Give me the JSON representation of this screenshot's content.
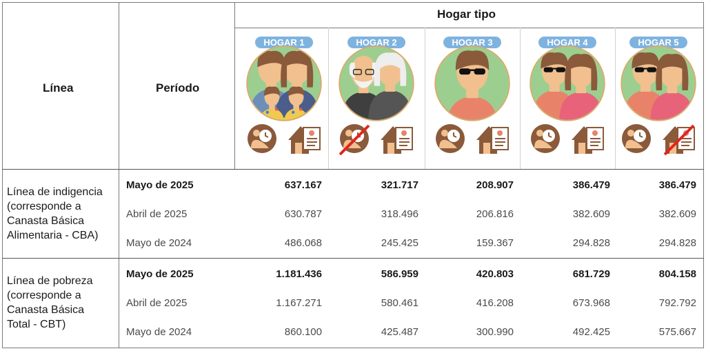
{
  "header": {
    "linea": "Línea",
    "periodo": "Período",
    "hogar_tipo": "Hogar tipo"
  },
  "hogares": [
    {
      "label": "HOGAR 1",
      "members": "family-4",
      "icons": [
        "infant-care-icon",
        "housing-rent-icon"
      ],
      "crossed": ""
    },
    {
      "label": "HOGAR 2",
      "members": "elderly-couple",
      "icons": [
        "infant-care-icon",
        "housing-rent-icon"
      ],
      "crossed": "infant-care-icon"
    },
    {
      "label": "HOGAR 3",
      "members": "single-adult",
      "icons": [
        "infant-care-icon",
        "housing-rent-icon"
      ],
      "crossed": ""
    },
    {
      "label": "HOGAR 4",
      "members": "adult-couple",
      "icons": [
        "infant-care-icon",
        "housing-rent-icon"
      ],
      "crossed": ""
    },
    {
      "label": "HOGAR 5",
      "members": "adult-couple",
      "icons": [
        "infant-care-icon",
        "housing-rent-icon"
      ],
      "crossed": "housing-rent-icon"
    }
  ],
  "colors": {
    "badge": "#7fb3df",
    "circle_bg": "#9ccf8f",
    "skin": "#f1c08e",
    "hair_brown": "#8a5a3a",
    "cross_red": "#e0261d",
    "icon_brown": "#8a5a3a"
  },
  "sections": [
    {
      "label_lines": [
        "Línea de indigencia",
        "(corresponde a",
        "Canasta Básica",
        "Alimentaria - CBA)"
      ],
      "rows": [
        {
          "period": "Mayo de 2025",
          "bold": true,
          "values": [
            "637.167",
            "321.717",
            "208.907",
            "386.479",
            "386.479"
          ]
        },
        {
          "period": "Abril de 2025",
          "bold": false,
          "values": [
            "630.787",
            "318.496",
            "206.816",
            "382.609",
            "382.609"
          ]
        },
        {
          "period": "Mayo de 2024",
          "bold": false,
          "values": [
            "486.068",
            "245.425",
            "159.367",
            "294.828",
            "294.828"
          ]
        }
      ]
    },
    {
      "label_lines": [
        "Línea de pobreza",
        "(corresponde a",
        "Canasta Básica",
        "Total - CBT)"
      ],
      "rows": [
        {
          "period": "Mayo de 2025",
          "bold": true,
          "values": [
            "1.181.436",
            "586.959",
            "420.803",
            "681.729",
            "804.158"
          ]
        },
        {
          "period": "Abril de 2025",
          "bold": false,
          "values": [
            "1.167.271",
            "580.461",
            "416.208",
            "673.968",
            "792.792"
          ]
        },
        {
          "period": "Mayo de 2024",
          "bold": false,
          "values": [
            "860.100",
            "425.487",
            "300.990",
            "492.425",
            "575.667"
          ]
        }
      ]
    }
  ]
}
